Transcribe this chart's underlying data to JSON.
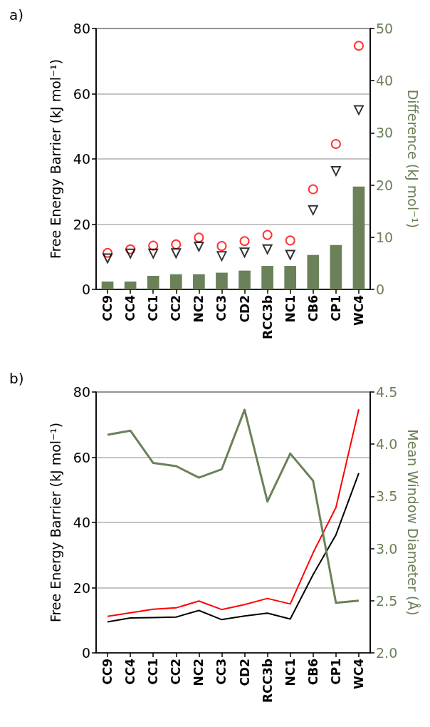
{
  "chart_data": [
    {
      "type": "scatter",
      "title": "a)",
      "ylabel": "Free Energy Barrier (kJ mol⁻¹)",
      "y2label": "Difference (kJ mol⁻¹)",
      "categories": [
        "CC9",
        "CC4",
        "CC1",
        "CC2",
        "NC2",
        "CC3",
        "CD2",
        "RCC3b",
        "NC1",
        "CB6",
        "CP1",
        "WC4"
      ],
      "series": [
        {
          "type": "bar",
          "axis": "y2",
          "color": "#6b8159",
          "values": [
            1.5,
            1.5,
            2.6,
            2.9,
            2.9,
            3.2,
            3.6,
            4.5,
            4.5,
            6.6,
            8.5,
            19.7
          ]
        },
        {
          "marker": "circle",
          "color": "#ff0000",
          "values": [
            11.2,
            12.3,
            13.4,
            13.8,
            15.9,
            13.3,
            14.8,
            16.7,
            15.0,
            30.7,
            44.6,
            74.7
          ]
        },
        {
          "marker": "triangle",
          "color": "#000000",
          "values": [
            9.5,
            11.0,
            11.0,
            11.1,
            13.1,
            10.2,
            11.3,
            12.3,
            10.6,
            24.3,
            36.3,
            55.0
          ]
        }
      ],
      "ylim": [
        0,
        80
      ],
      "yticks": [
        0,
        20,
        40,
        60,
        80
      ],
      "y2lim": [
        0,
        50
      ],
      "y2ticks": [
        0,
        10,
        20,
        30,
        40,
        50
      ],
      "grid": "y"
    },
    {
      "type": "line",
      "title": "b)",
      "ylabel": "Free Energy Barrier (kJ mol⁻¹)",
      "y2label": "Mean Window Diameter (Å)",
      "categories": [
        "CC9",
        "CC4",
        "CC1",
        "CC2",
        "NC2",
        "CC3",
        "CD2",
        "RCC3b",
        "NC1",
        "CB6",
        "CP1",
        "WC4"
      ],
      "series": [
        {
          "color": "#ff0000",
          "values": [
            11.2,
            12.3,
            13.4,
            13.8,
            15.9,
            13.3,
            14.8,
            16.7,
            15.0,
            30.7,
            44.6,
            74.7
          ]
        },
        {
          "color": "#000000",
          "values": [
            9.5,
            10.7,
            10.8,
            11.0,
            13.0,
            10.2,
            11.3,
            12.2,
            10.4,
            24.0,
            36.2,
            55.1
          ]
        },
        {
          "axis": "y2",
          "color": "#6b8159",
          "values": [
            4.09,
            4.13,
            3.82,
            3.79,
            3.68,
            3.76,
            4.33,
            3.45,
            3.91,
            3.65,
            2.48,
            2.5
          ]
        }
      ],
      "ylim": [
        0,
        80
      ],
      "yticks": [
        0,
        20,
        40,
        60,
        80
      ],
      "y2lim": [
        2.0,
        4.5
      ],
      "y2ticks": [
        {
          "value": 2.0,
          "label": "2.0"
        },
        {
          "value": 2.5,
          "label": "2.5"
        },
        {
          "value": 3.0,
          "label": "3.0"
        },
        {
          "value": 3.5,
          "label": "3.5"
        },
        {
          "value": 4.0,
          "label": "4.0"
        },
        {
          "value": 4.5,
          "label": "4.5"
        }
      ],
      "grid": "y",
      "marker": "none"
    }
  ]
}
